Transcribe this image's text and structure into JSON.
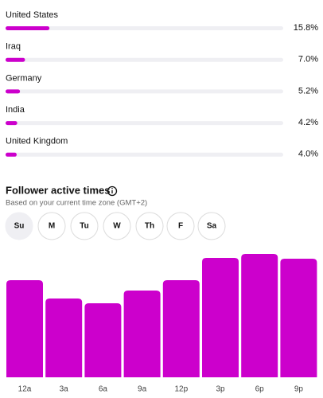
{
  "top_countries": [
    {
      "name": "United States",
      "value": 15.8,
      "value_label": "15.8%"
    },
    {
      "name": "Iraq",
      "value": 7.0,
      "value_label": "7.0%"
    },
    {
      "name": "Germany",
      "value": 5.2,
      "value_label": "5.2%"
    },
    {
      "name": "India",
      "value": 4.2,
      "value_label": "4.2%"
    },
    {
      "name": "United Kingdom",
      "value": 4.0,
      "value_label": "4.0%"
    }
  ],
  "active_times": {
    "title": "Follower active times",
    "subtitle": "Based on your current time zone (GMT+2)",
    "days": [
      "Su",
      "M",
      "Tu",
      "W",
      "Th",
      "F",
      "Sa"
    ],
    "selected_day": "Su",
    "chart_data": {
      "type": "bar",
      "color": "#cc00cc",
      "categories": [
        "12a",
        "3a",
        "6a",
        "9a",
        "12p",
        "3p",
        "6p",
        "9p"
      ],
      "values": [
        122,
        99,
        93,
        109,
        122,
        150,
        155,
        149
      ]
    }
  }
}
